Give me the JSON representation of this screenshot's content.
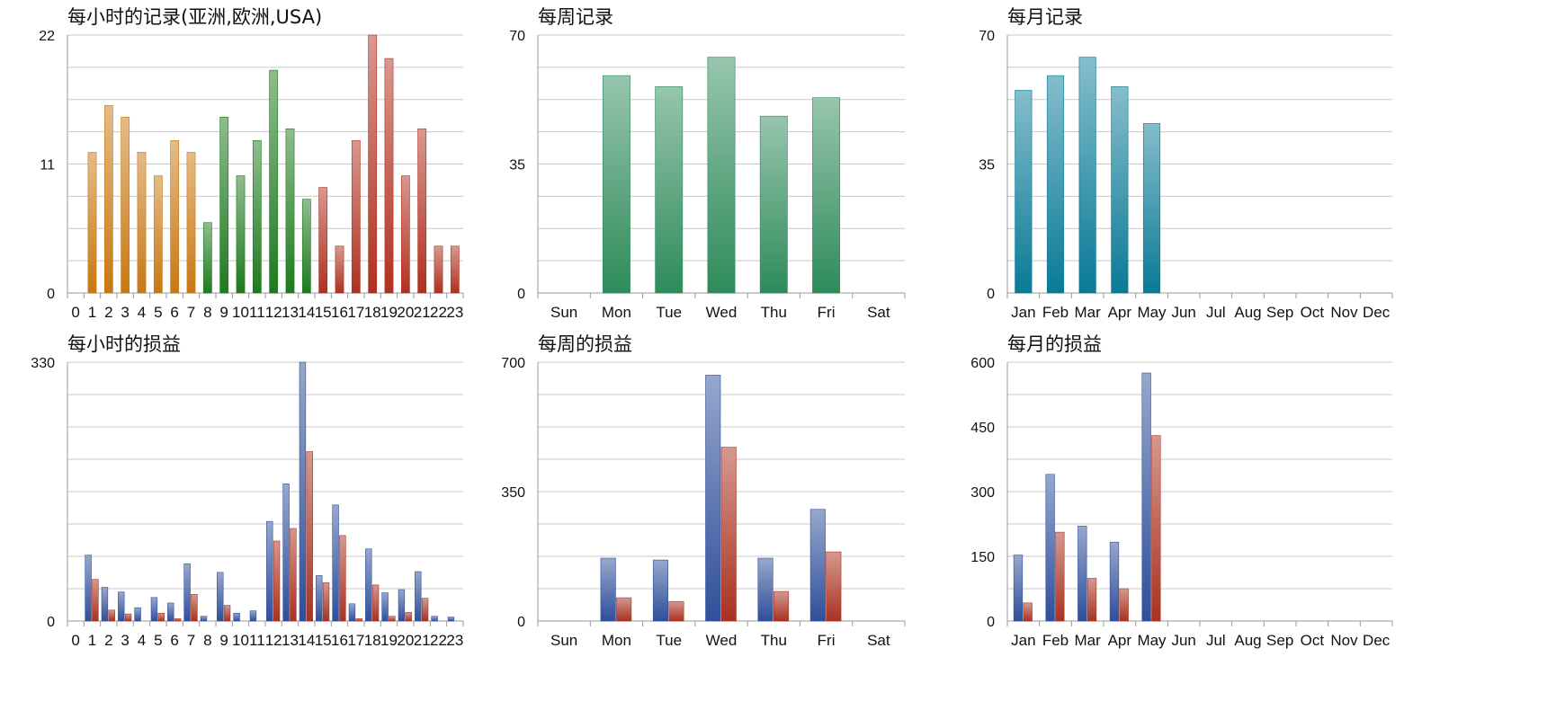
{
  "chart_data": [
    {
      "id": "hourly-records",
      "type": "bar",
      "title": "每小时的记录(亚洲,欧洲,USA)",
      "categories": [
        "0",
        "1",
        "2",
        "3",
        "4",
        "5",
        "6",
        "7",
        "8",
        "9",
        "10",
        "11",
        "12",
        "13",
        "14",
        "15",
        "16",
        "17",
        "18",
        "19",
        "20",
        "21",
        "22",
        "23"
      ],
      "values": [
        0,
        12,
        16,
        15,
        12,
        10,
        13,
        12,
        6,
        15,
        10,
        13,
        19,
        14,
        8,
        9,
        4,
        13,
        22,
        20,
        10,
        14,
        4,
        4
      ],
      "bar_colors": [
        "#c87812",
        "#c87812",
        "#c87812",
        "#c87812",
        "#c87812",
        "#c87812",
        "#c87812",
        "#c87812",
        "#1e7a1e",
        "#1e7a1e",
        "#1e7a1e",
        "#1e7a1e",
        "#1e7a1e",
        "#1e7a1e",
        "#1e7a1e",
        "#b03020",
        "#b03020",
        "#b03020",
        "#b03020",
        "#b03020",
        "#b03020",
        "#b03020",
        "#b03020",
        "#b03020"
      ],
      "ylim": [
        0,
        22
      ],
      "yticks": [
        "0",
        "11",
        "22"
      ],
      "grid": true
    },
    {
      "id": "weekly-records",
      "type": "bar",
      "title": "每周记录",
      "categories": [
        "Sun",
        "Mon",
        "Tue",
        "Wed",
        "Thu",
        "Fri",
        "Sat"
      ],
      "values": [
        0,
        59,
        56,
        64,
        48,
        53,
        0
      ],
      "color": "#2e8b5a",
      "ylim": [
        0,
        70
      ],
      "yticks": [
        "0",
        "35",
        "70"
      ],
      "grid": true
    },
    {
      "id": "monthly-records",
      "type": "bar",
      "title": "每月记录",
      "categories": [
        "Jan",
        "Feb",
        "Mar",
        "Apr",
        "May",
        "Jun",
        "Jul",
        "Aug",
        "Sep",
        "Oct",
        "Nov",
        "Dec"
      ],
      "values": [
        55,
        59,
        64,
        56,
        46,
        0,
        0,
        0,
        0,
        0,
        0,
        0
      ],
      "color": "#0a7a96",
      "ylim": [
        0,
        70
      ],
      "yticks": [
        "0",
        "35",
        "70"
      ],
      "grid": true
    },
    {
      "id": "hourly-profit",
      "type": "bar",
      "title": "每小时的损益",
      "categories": [
        "0",
        "1",
        "2",
        "3",
        "4",
        "5",
        "6",
        "7",
        "8",
        "9",
        "10",
        "11",
        "12",
        "13",
        "14",
        "15",
        "16",
        "17",
        "18",
        "19",
        "20",
        "21",
        "22",
        "23"
      ],
      "series": [
        {
          "values": [
            0,
            84,
            43,
            37,
            17,
            30,
            23,
            73,
            6,
            62,
            10,
            13,
            127,
            175,
            330,
            58,
            148,
            22,
            92,
            36,
            40,
            63,
            6,
            5
          ],
          "color": "#2f4f9a"
        },
        {
          "values": [
            0,
            53,
            14,
            9,
            0,
            10,
            3,
            34,
            0,
            20,
            0,
            0,
            102,
            118,
            216,
            49,
            109,
            3,
            46,
            6,
            11,
            29,
            0,
            0
          ],
          "color": "#a83220"
        }
      ],
      "ylim": [
        0,
        330
      ],
      "yticks": [
        "0",
        "330"
      ],
      "grid": true
    },
    {
      "id": "weekly-profit",
      "type": "bar",
      "title": "每周的损益",
      "categories": [
        "Sun",
        "Mon",
        "Tue",
        "Wed",
        "Thu",
        "Fri",
        "Sat"
      ],
      "series": [
        {
          "values": [
            0,
            170,
            165,
            665,
            170,
            302,
            0
          ],
          "color": "#2f4f9a"
        },
        {
          "values": [
            0,
            63,
            53,
            470,
            80,
            187,
            0
          ],
          "color": "#a83220"
        }
      ],
      "ylim": [
        0,
        700
      ],
      "yticks": [
        "0",
        "350",
        "700"
      ],
      "grid": true
    },
    {
      "id": "monthly-profit",
      "type": "bar",
      "title": "每月的损益",
      "categories": [
        "Jan",
        "Feb",
        "Mar",
        "Apr",
        "May",
        "Jun",
        "Jul",
        "Aug",
        "Sep",
        "Oct",
        "Nov",
        "Dec"
      ],
      "series": [
        {
          "values": [
            153,
            340,
            220,
            183,
            575,
            0,
            0,
            0,
            0,
            0,
            0,
            0
          ],
          "color": "#2f4f9a"
        },
        {
          "values": [
            42,
            206,
            99,
            75,
            430,
            0,
            0,
            0,
            0,
            0,
            0,
            0
          ],
          "color": "#a83220"
        }
      ],
      "ylim": [
        0,
        600
      ],
      "yticks": [
        "0",
        "150",
        "300",
        "450",
        "600"
      ],
      "grid": true
    }
  ]
}
